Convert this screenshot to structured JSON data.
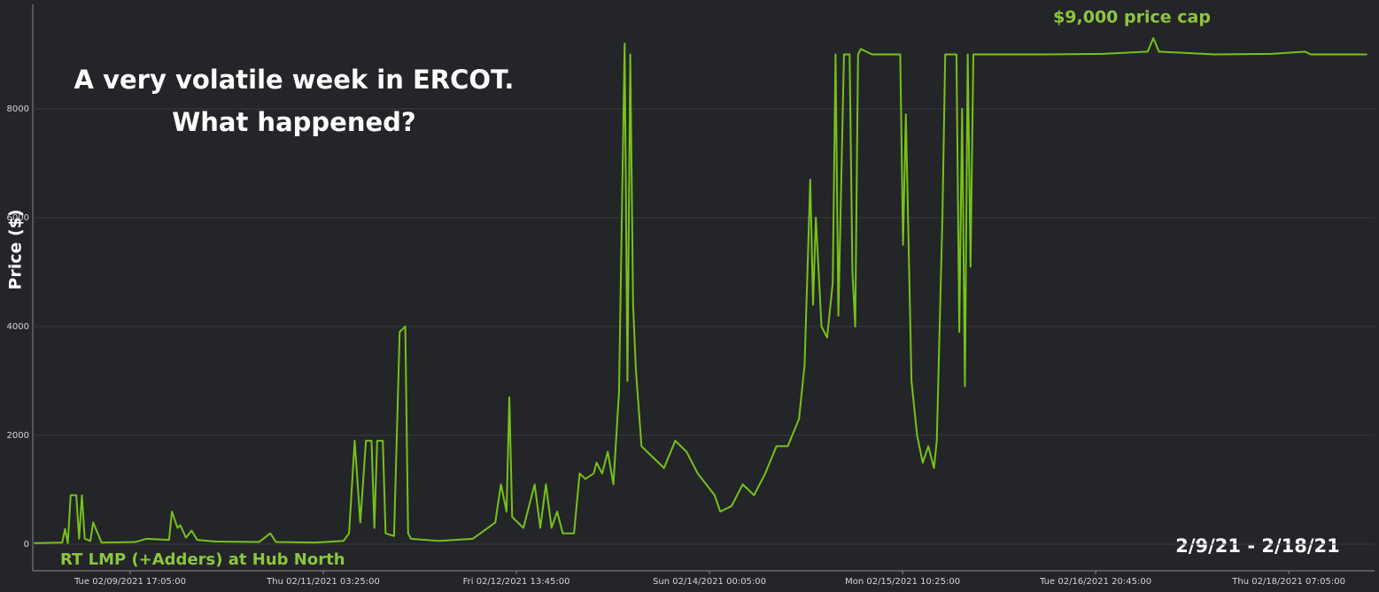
{
  "chart_data": {
    "type": "line",
    "title_lines": [
      "A very volatile week in ERCOT.",
      "What happened?"
    ],
    "annotation": "$9,000 price cap",
    "date_range": "2/9/21 - 2/18/21",
    "ylabel": "Price ($)",
    "ylim": [
      -500,
      9800
    ],
    "yticks": [
      0,
      2000,
      4000,
      6000,
      8000
    ],
    "xlim": [
      "02/09/2021 00:00:00",
      "02/18/2021 21:00:00"
    ],
    "xticks": [
      {
        "value": "02/09/2021 17:05:00",
        "label": "Tue 02/09/2021 17:05:00"
      },
      {
        "value": "02/11/2021 03:25:00",
        "label": "Thu 02/11/2021 03:25:00"
      },
      {
        "value": "02/12/2021 13:45:00",
        "label": "Fri 02/12/2021 13:45:00"
      },
      {
        "value": "02/14/2021 00:05:00",
        "label": "Sun 02/14/2021 00:05:00"
      },
      {
        "value": "02/15/2021 10:25:00",
        "label": "Mon 02/15/2021 10:25:00"
      },
      {
        "value": "02/16/2021 20:45:00",
        "label": "Tue 02/16/2021 20:45:00"
      },
      {
        "value": "02/18/2021 07:05:00",
        "label": "Thu 02/18/2021 07:05:00"
      }
    ],
    "grid": true,
    "x": [
      "02/09/2021 00:00:00",
      "02/09/2021 05:00:00",
      "02/09/2021 05:30:00",
      "02/09/2021 06:00:00",
      "02/09/2021 06:30:00",
      "02/09/2021 07:30:00",
      "02/09/2021 08:00:00",
      "02/09/2021 08:30:00",
      "02/09/2021 09:00:00",
      "02/09/2021 10:00:00",
      "02/09/2021 10:30:00",
      "02/09/2021 12:00:00",
      "02/09/2021 18:00:00",
      "02/09/2021 20:00:00",
      "02/10/2021 00:00:00",
      "02/10/2021 00:30:00",
      "02/10/2021 01:30:00",
      "02/10/2021 02:00:00",
      "02/10/2021 03:00:00",
      "02/10/2021 04:00:00",
      "02/10/2021 05:00:00",
      "02/10/2021 08:00:00",
      "02/10/2021 16:00:00",
      "02/10/2021 18:00:00",
      "02/10/2021 19:00:00",
      "02/11/2021 02:00:00",
      "02/11/2021 07:00:00",
      "02/11/2021 08:00:00",
      "02/11/2021 09:00:00",
      "02/11/2021 10:00:00",
      "02/11/2021 11:00:00",
      "02/11/2021 12:00:00",
      "02/11/2021 12:30:00",
      "02/11/2021 13:00:00",
      "02/11/2021 14:00:00",
      "02/11/2021 14:30:00",
      "02/11/2021 16:00:00",
      "02/11/2021 17:00:00",
      "02/11/2021 18:00:00",
      "02/11/2021 18:30:00",
      "02/11/2021 19:00:00",
      "02/12/2021 00:00:00",
      "02/12/2021 06:00:00",
      "02/12/2021 08:00:00",
      "02/12/2021 10:00:00",
      "02/12/2021 11:00:00",
      "02/12/2021 12:00:00",
      "02/12/2021 12:30:00",
      "02/12/2021 13:00:00",
      "02/12/2021 15:00:00",
      "02/12/2021 16:00:00",
      "02/12/2021 17:00:00",
      "02/12/2021 18:00:00",
      "02/12/2021 19:00:00",
      "02/12/2021 20:00:00",
      "02/12/2021 21:00:00",
      "02/12/2021 22:00:00",
      "02/13/2021 00:00:00",
      "02/13/2021 01:00:00",
      "02/13/2021 02:00:00",
      "02/13/2021 03:30:00",
      "02/13/2021 04:00:00",
      "02/13/2021 05:00:00",
      "02/13/2021 06:00:00",
      "02/13/2021 07:00:00",
      "02/13/2021 08:00:00",
      "02/13/2021 09:00:00",
      "02/13/2021 09:30:00",
      "02/13/2021 10:00:00",
      "02/13/2021 10:30:00",
      "02/13/2021 11:00:00",
      "02/13/2021 12:00:00",
      "02/13/2021 14:00:00",
      "02/13/2021 16:00:00",
      "02/13/2021 18:00:00",
      "02/13/2021 20:00:00",
      "02/13/2021 22:00:00",
      "02/14/2021 01:00:00",
      "02/14/2021 02:00:00",
      "02/14/2021 04:00:00",
      "02/14/2021 06:00:00",
      "02/14/2021 08:00:00",
      "02/14/2021 10:00:00",
      "02/14/2021 12:00:00",
      "02/14/2021 14:00:00",
      "02/14/2021 16:00:00",
      "02/14/2021 17:00:00",
      "02/14/2021 18:00:00",
      "02/14/2021 18:30:00",
      "02/14/2021 19:00:00",
      "02/14/2021 20:00:00",
      "02/14/2021 21:00:00",
      "02/14/2021 22:00:00",
      "02/14/2021 22:30:00",
      "02/14/2021 23:00:00",
      "02/15/2021 00:00:00",
      "02/15/2021 01:00:00",
      "02/15/2021 01:30:00",
      "02/15/2021 02:00:00",
      "02/15/2021 02:30:00",
      "02/15/2021 03:00:00",
      "02/15/2021 05:00:00",
      "02/15/2021 06:30:00",
      "02/15/2021 10:00:00",
      "02/15/2021 10:30:00",
      "02/15/2021 11:00:00",
      "02/15/2021 12:00:00",
      "02/15/2021 13:00:00",
      "02/15/2021 14:00:00",
      "02/15/2021 15:00:00",
      "02/15/2021 16:00:00",
      "02/15/2021 16:30:00",
      "02/15/2021 17:30:00",
      "02/15/2021 18:00:00",
      "02/15/2021 20:00:00",
      "02/15/2021 20:30:00",
      "02/15/2021 21:00:00",
      "02/15/2021 21:30:00",
      "02/15/2021 22:00:00",
      "02/15/2021 22:30:00",
      "02/15/2021 23:00:00",
      "02/16/2021 02:00:00",
      "02/16/2021 12:00:00",
      "02/16/2021 22:00:00",
      "02/17/2021 06:00:00",
      "02/17/2021 07:00:00",
      "02/17/2021 08:00:00",
      "02/17/2021 18:00:00",
      "02/18/2021 04:00:00",
      "02/18/2021 10:00:00",
      "02/18/2021 11:00:00",
      "02/18/2021 21:00:00"
    ],
    "series": [
      {
        "name": "RT LMP (+Adders) at Hub North",
        "color": "#77c21a",
        "values": [
          20,
          30,
          280,
          20,
          900,
          900,
          100,
          900,
          100,
          60,
          400,
          30,
          40,
          100,
          80,
          600,
          300,
          350,
          120,
          250,
          80,
          50,
          40,
          200,
          40,
          30,
          60,
          200,
          1900,
          400,
          1900,
          1900,
          300,
          1900,
          1900,
          200,
          150,
          3900,
          4000,
          200,
          100,
          60,
          100,
          250,
          400,
          1100,
          600,
          2700,
          500,
          300,
          700,
          1100,
          300,
          1100,
          300,
          600,
          200,
          200,
          1300,
          1200,
          1300,
          1500,
          1300,
          1700,
          1100,
          2800,
          9200,
          3000,
          9000,
          4400,
          3200,
          1800,
          1600,
          1400,
          1900,
          1700,
          1300,
          900,
          600,
          700,
          1100,
          900,
          1300,
          1800,
          1800,
          2300,
          3300,
          6700,
          4400,
          6000,
          4000,
          3800,
          4800,
          9000,
          4200,
          9000,
          9000,
          5000,
          4000,
          9000,
          9100,
          9000,
          9000,
          9000,
          5500,
          7900,
          3000,
          2000,
          1500,
          1800,
          1400,
          1900,
          6000,
          9000,
          9000,
          3900,
          8000,
          2900,
          9000,
          5100,
          9000,
          9000,
          9000,
          9010,
          9050,
          9300,
          9050,
          9000,
          9010,
          9050,
          9000,
          9000
        ]
      }
    ]
  }
}
